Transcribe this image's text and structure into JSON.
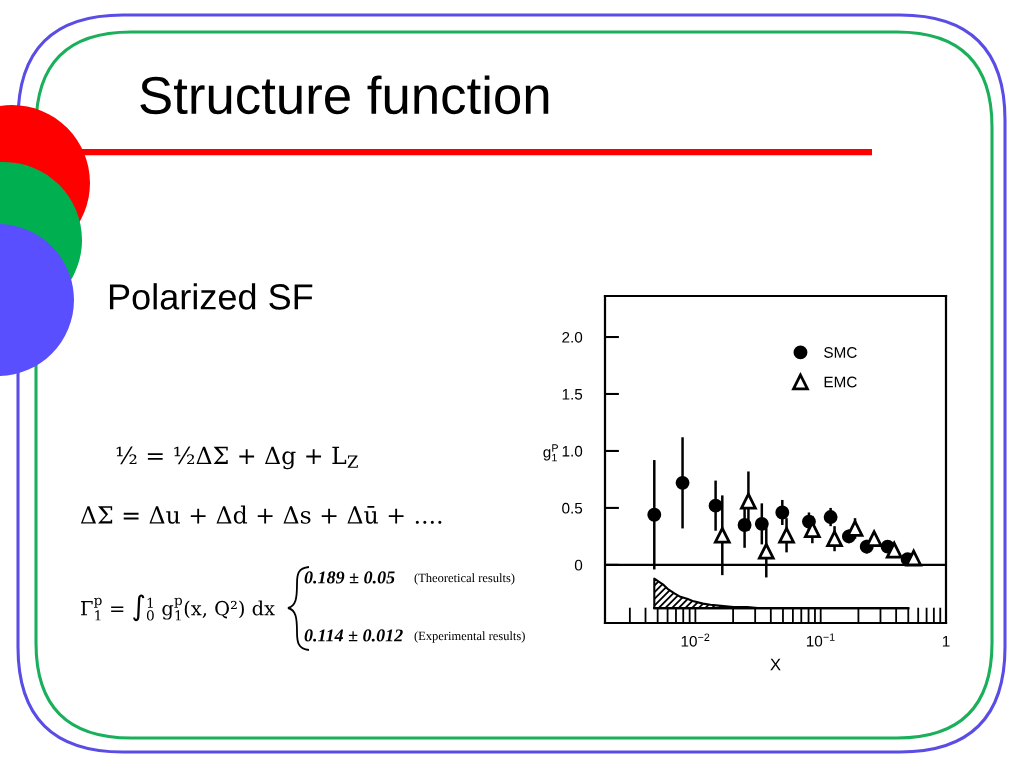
{
  "chart_data": {
    "type": "scatter",
    "title": "Structure function",
    "subtitle": "Polarized SF",
    "xlabel": "X",
    "ylabel": "g$^{P}$$_{1}$",
    "log": "x",
    "xlim": [
      0.0019,
      1
    ],
    "xticks": [
      {
        "value": 0.003,
        "label": null
      },
      {
        "value": 0.004,
        "label": null
      },
      {
        "value": 0.005,
        "label": null
      },
      {
        "value": 0.006,
        "label": null
      },
      {
        "value": 0.007,
        "label": null
      },
      {
        "value": 0.008,
        "label": null
      },
      {
        "value": 0.009,
        "label": null
      },
      {
        "value": 0.01,
        "label": "10$^{−2}$"
      },
      {
        "value": 0.02,
        "label": null
      },
      {
        "value": 0.03,
        "label": null
      },
      {
        "value": 0.04,
        "label": null
      },
      {
        "value": 0.05,
        "label": null
      },
      {
        "value": 0.06,
        "label": null
      },
      {
        "value": 0.07,
        "label": null
      },
      {
        "value": 0.08,
        "label": null
      },
      {
        "value": 0.09,
        "label": null
      },
      {
        "value": 0.1,
        "label": "10$^{−1}$"
      },
      {
        "value": 0.2,
        "label": null
      },
      {
        "value": 0.3,
        "label": null
      },
      {
        "value": 0.4,
        "label": null
      },
      {
        "value": 0.5,
        "label": null
      },
      {
        "value": 0.6,
        "label": null
      },
      {
        "value": 0.7,
        "label": null
      },
      {
        "value": 0.8,
        "label": null
      },
      {
        "value": 0.9,
        "label": null
      },
      1
    ],
    "ylim": [
      -0.51,
      2.36
    ],
    "yticks": [
      0,
      0.5,
      {
        "value": 1,
        "label": "1.0"
      },
      1.5,
      {
        "value": 2,
        "label": "2.0"
      }
    ],
    "ref_lines": [
      {
        "axis": "y",
        "value": 0,
        "color": "#000000"
      }
    ],
    "legend": "top right",
    "series": [
      {
        "name": "SMC",
        "marker": "circle",
        "color": "#000000",
        "x": [
          0.0047,
          0.0079,
          0.0145,
          0.0247,
          0.0339,
          0.0494,
          0.0806,
          0.12,
          0.168,
          0.233,
          0.342,
          0.494
        ],
        "values": [
          0.44,
          0.72,
          0.52,
          0.35,
          0.36,
          0.46,
          0.38,
          0.42,
          0.25,
          0.16,
          0.16,
          0.05
        ],
        "errors": [
          0.48,
          0.4,
          0.22,
          0.2,
          0.18,
          0.11,
          0.08,
          0.08,
          0.06,
          0.06,
          0.04,
          0.03
        ]
      },
      {
        "name": "EMC",
        "marker": "triangle",
        "color": "#000000",
        "x": [
          0.0164,
          0.0265,
          0.0368,
          0.0534,
          0.0858,
          0.129,
          0.188,
          0.267,
          0.386,
          0.552
        ],
        "values": [
          0.26,
          0.56,
          0.12,
          0.26,
          0.31,
          0.23,
          0.32,
          0.23,
          0.13,
          0.06
        ],
        "errors": [
          0.35,
          0.26,
          0.23,
          0.15,
          0.12,
          0.11,
          0.09,
          0.06,
          0.05,
          0.04
        ]
      },
      {
        "type": "line",
        "color": "#000000",
        "x": [
          0.0047,
          0.0055,
          0.006,
          0.0068,
          0.0076,
          0.0087,
          0.0097,
          0.0115,
          0.0132,
          0.016,
          0.0202,
          0.026,
          0.033,
          0.5
        ],
        "values": [
          -0.38,
          -0.38,
          -0.38,
          -0.38,
          -0.38,
          -0.38,
          -0.38,
          -0.38,
          -0.38,
          -0.38,
          -0.38,
          -0.38,
          -0.38,
          -0.38
        ],
        "lower": [
          -0.38,
          -0.38,
          -0.38,
          -0.38,
          -0.38,
          -0.38,
          -0.38,
          -0.38,
          -0.38,
          -0.38,
          -0.38,
          -0.38,
          -0.38,
          -0.38
        ],
        "upper": [
          -0.12,
          -0.17,
          -0.21,
          -0.25,
          -0.28,
          -0.3,
          -0.32,
          -0.34,
          -0.35,
          -0.36,
          -0.37,
          -0.37,
          -0.38,
          -0.38
        ]
      }
    ],
    "annotations": [
      "½ = ½ΔΣ + Δg + L$_{Z}$",
      "ΔΣ = Δu + Δd + Δs + Δū + ....",
      "Γ$^{p}$$_{1}$ = ∫$^{1}$$_{0}$ g$^{p}$$_{1}$(x, Q²) dx",
      "0.189 ± 0.05",
      "(Theoretical results)",
      "0.114 ± 0.012",
      "(Experimental results)"
    ]
  }
}
